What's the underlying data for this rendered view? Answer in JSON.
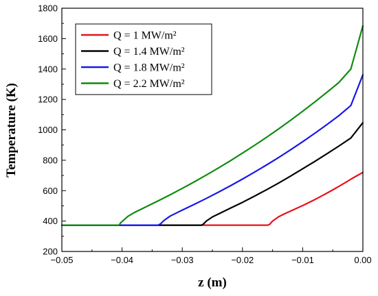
{
  "chart_data": {
    "type": "line",
    "xlabel": "z (m)",
    "ylabel": "Temperature (K)",
    "xlim": [
      -0.05,
      0.0
    ],
    "ylim": [
      200,
      1800
    ],
    "xticks": [
      -0.05,
      -0.04,
      -0.03,
      -0.02,
      -0.01,
      0.0
    ],
    "xtick_labels": [
      "−0.05",
      "−0.04",
      "−0.03",
      "−0.02",
      "−0.01",
      "0.00"
    ],
    "yticks": [
      200,
      400,
      600,
      800,
      1000,
      1200,
      1400,
      1600,
      1800
    ],
    "ytick_labels": [
      "200",
      "400",
      "600",
      "800",
      "1000",
      "1200",
      "1400",
      "1600",
      "1800"
    ],
    "grid": false,
    "legend_position": "top-left",
    "series": [
      {
        "name": "Q = 1 MW/m²",
        "color": "#e8101a",
        "x": [
          -0.05,
          -0.0158,
          -0.0155,
          -0.015,
          -0.014,
          -0.013,
          -0.012,
          -0.011,
          -0.01,
          -0.009,
          -0.008,
          -0.007,
          -0.006,
          -0.005,
          -0.004,
          -0.003,
          -0.002,
          -0.001,
          0.0
        ],
        "y": [
          373,
          373,
          378,
          400,
          428,
          448,
          466,
          484,
          502,
          521,
          541,
          562,
          583,
          605,
          628,
          651,
          675,
          698,
          720
        ]
      },
      {
        "name": "Q = 1.4 MW/m²",
        "color": "#000000",
        "x": [
          -0.05,
          -0.0268,
          -0.0265,
          -0.026,
          -0.025,
          -0.024,
          -0.022,
          -0.02,
          -0.018,
          -0.016,
          -0.014,
          -0.012,
          -0.01,
          -0.008,
          -0.006,
          -0.004,
          -0.002,
          0.0
        ],
        "y": [
          373,
          373,
          380,
          400,
          427,
          446,
          485,
          523,
          564,
          606,
          650,
          696,
          744,
          792,
          842,
          893,
          946,
          1047
        ]
      },
      {
        "name": "Q = 1.8 MW/m²",
        "color": "#1717e8",
        "x": [
          -0.05,
          -0.034,
          -0.0336,
          -0.033,
          -0.032,
          -0.03,
          -0.028,
          -0.026,
          -0.024,
          -0.022,
          -0.02,
          -0.018,
          -0.016,
          -0.014,
          -0.012,
          -0.01,
          -0.008,
          -0.006,
          -0.004,
          -0.002,
          0.0
        ],
        "y": [
          373,
          373,
          382,
          405,
          433,
          472,
          510,
          549,
          590,
          632,
          676,
          722,
          769,
          818,
          869,
          922,
          977,
          1034,
          1093,
          1160,
          1362
        ]
      },
      {
        "name": "Q = 2.2 MW/m²",
        "color": "#0f8a10",
        "x": [
          -0.05,
          -0.0405,
          -0.0402,
          -0.039,
          -0.038,
          -0.036,
          -0.034,
          -0.032,
          -0.03,
          -0.028,
          -0.026,
          -0.024,
          -0.022,
          -0.02,
          -0.018,
          -0.016,
          -0.014,
          -0.012,
          -0.01,
          -0.008,
          -0.006,
          -0.004,
          -0.002,
          0.0
        ],
        "y": [
          373,
          373,
          390,
          432,
          455,
          494,
          533,
          573,
          615,
          658,
          703,
          749,
          797,
          847,
          898,
          951,
          1006,
          1063,
          1122,
          1183,
          1246,
          1311,
          1400,
          1685
        ]
      }
    ]
  }
}
